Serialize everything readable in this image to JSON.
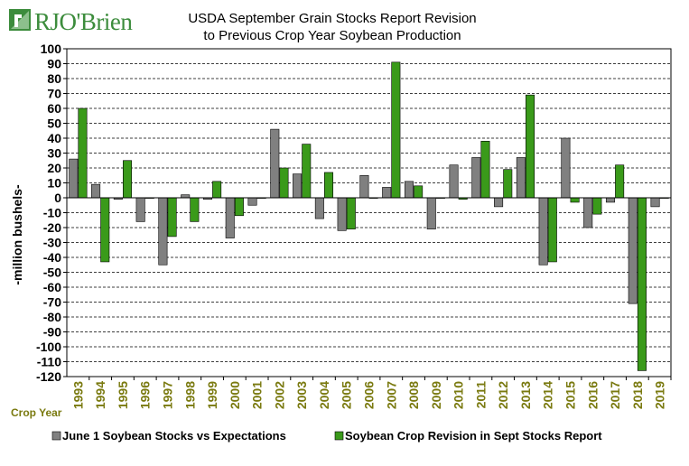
{
  "brand": {
    "logo_text": "RJO'Brien",
    "logo_color": "#3c8c3c"
  },
  "chart_data": {
    "type": "bar",
    "title": "USDA September Grain Stocks Report Revision",
    "subtitle": "to Previous Crop Year Soybean Production",
    "ylabel": "-million bushels-",
    "xlabel": "Crop Year",
    "ylim": [
      -120,
      100
    ],
    "ytick_step": 10,
    "grid": true,
    "legend_placement": "bottom",
    "categories": [
      "1993",
      "1994",
      "1995",
      "1996",
      "1997",
      "1998",
      "1999",
      "2000",
      "2001",
      "2002",
      "2003",
      "2004",
      "2005",
      "2006",
      "2007",
      "2008",
      "2009",
      "2010",
      "2011",
      "2012",
      "2013",
      "2014",
      "2015",
      "2016",
      "2017",
      "2018",
      "2019"
    ],
    "series": [
      {
        "name": "June 1 Soybean Stocks vs Expectations",
        "color": "#808080",
        "values": [
          26,
          9,
          -1,
          -16,
          -45,
          2,
          -1,
          -27,
          -5,
          46,
          16,
          -14,
          -22,
          15,
          7,
          11,
          -21,
          22,
          27,
          -6,
          27,
          -45,
          40,
          -20,
          -3,
          -71,
          -6
        ]
      },
      {
        "name": "Soybean Crop Revision in Sept Stocks Report",
        "color": "#3a9a1a",
        "values": [
          60,
          -43,
          25,
          0,
          -26,
          -16,
          11,
          -12,
          0,
          20,
          36,
          17,
          -21,
          0,
          91,
          8,
          0,
          -1,
          38,
          19,
          69,
          -43,
          -3,
          -11,
          22,
          -116,
          0
        ]
      }
    ]
  }
}
